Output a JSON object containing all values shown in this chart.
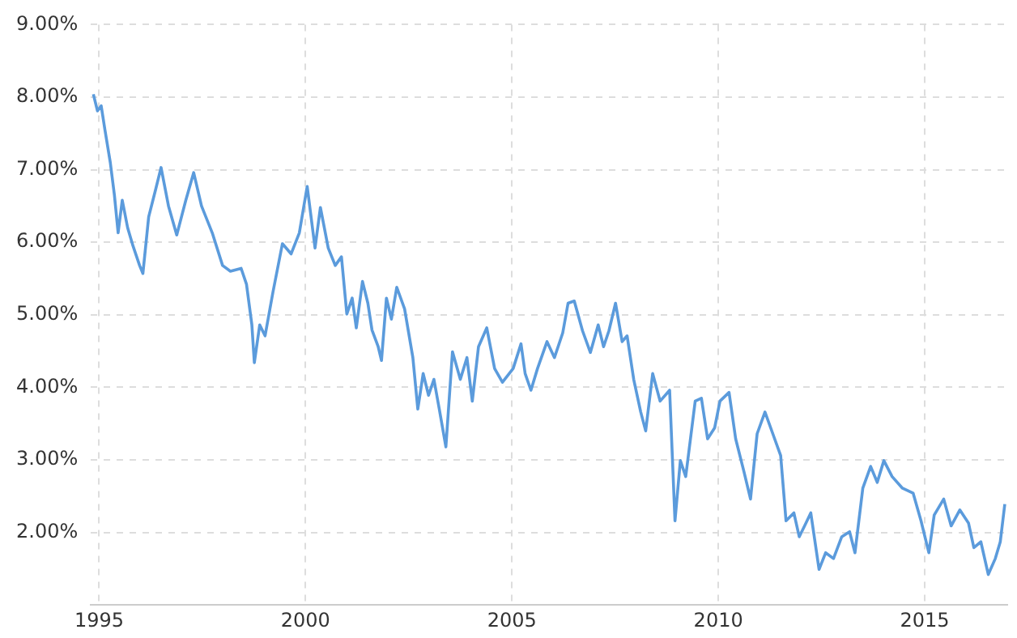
{
  "chart_data": {
    "type": "line",
    "x": [
      1994.86,
      1994.96,
      1995.05,
      1995.14,
      1995.27,
      1995.37,
      1995.46,
      1995.56,
      1995.69,
      1995.82,
      1995.98,
      1996.06,
      1996.2,
      1996.37,
      1996.5,
      1996.68,
      1996.88,
      1997.1,
      1997.29,
      1997.48,
      1997.74,
      1997.99,
      1998.18,
      1998.44,
      1998.57,
      1998.7,
      1998.76,
      1998.89,
      1999.02,
      1999.21,
      1999.44,
      1999.65,
      1999.85,
      2000.04,
      2000.23,
      2000.36,
      2000.55,
      2000.72,
      2000.87,
      2001.0,
      2001.13,
      2001.23,
      2001.38,
      2001.51,
      2001.61,
      2001.76,
      2001.84,
      2001.96,
      2002.08,
      2002.21,
      2002.4,
      2002.6,
      2002.72,
      2002.85,
      2002.98,
      2003.11,
      2003.24,
      2003.4,
      2003.56,
      2003.75,
      2003.91,
      2004.04,
      2004.19,
      2004.39,
      2004.58,
      2004.77,
      2005.03,
      2005.22,
      2005.32,
      2005.46,
      2005.62,
      2005.85,
      2006.03,
      2006.23,
      2006.36,
      2006.51,
      2006.71,
      2006.9,
      2007.09,
      2007.22,
      2007.35,
      2007.51,
      2007.67,
      2007.79,
      2007.95,
      2008.12,
      2008.24,
      2008.41,
      2008.59,
      2008.82,
      2008.95,
      2009.08,
      2009.21,
      2009.44,
      2009.59,
      2009.74,
      2009.91,
      2010.04,
      2010.26,
      2010.42,
      2010.62,
      2010.78,
      2010.94,
      2011.13,
      2011.32,
      2011.51,
      2011.64,
      2011.83,
      2011.96,
      2012.09,
      2012.24,
      2012.44,
      2012.6,
      2012.79,
      2012.99,
      2013.18,
      2013.31,
      2013.5,
      2013.69,
      2013.85,
      2014.01,
      2014.21,
      2014.46,
      2014.72,
      2014.91,
      2015.1,
      2015.23,
      2015.46,
      2015.64,
      2015.85,
      2016.06,
      2016.19,
      2016.36,
      2016.54,
      2016.71,
      2016.83,
      2016.94
    ],
    "series": [
      {
        "color": "#5b9bdc",
        "values": [
          8.04,
          7.81,
          7.88,
          7.55,
          7.1,
          6.65,
          6.13,
          6.58,
          6.2,
          5.95,
          5.68,
          5.57,
          6.35,
          6.73,
          7.03,
          6.5,
          6.1,
          6.58,
          6.96,
          6.5,
          6.13,
          5.68,
          5.6,
          5.64,
          5.42,
          4.86,
          4.34,
          4.86,
          4.71,
          5.31,
          5.98,
          5.84,
          6.13,
          6.77,
          5.92,
          6.48,
          5.92,
          5.68,
          5.8,
          5.01,
          5.23,
          4.82,
          5.46,
          5.16,
          4.79,
          4.56,
          4.37,
          5.23,
          4.94,
          5.38,
          5.08,
          4.41,
          3.7,
          4.19,
          3.89,
          4.11,
          3.7,
          3.18,
          4.49,
          4.11,
          4.41,
          3.81,
          4.56,
          4.82,
          4.26,
          4.07,
          4.26,
          4.6,
          4.19,
          3.96,
          4.26,
          4.63,
          4.41,
          4.75,
          5.16,
          5.19,
          4.78,
          4.48,
          4.86,
          4.56,
          4.78,
          5.16,
          4.63,
          4.71,
          4.11,
          3.66,
          3.4,
          4.19,
          3.81,
          3.96,
          2.16,
          2.99,
          2.77,
          3.81,
          3.85,
          3.29,
          3.44,
          3.81,
          3.93,
          3.29,
          2.84,
          2.46,
          3.36,
          3.66,
          3.36,
          3.06,
          2.16,
          2.27,
          1.94,
          2.09,
          2.27,
          1.49,
          1.72,
          1.64,
          1.94,
          2.01,
          1.72,
          2.61,
          2.91,
          2.69,
          2.99,
          2.77,
          2.61,
          2.54,
          2.16,
          1.72,
          2.24,
          2.46,
          2.09,
          2.31,
          2.13,
          1.79,
          1.87,
          1.42,
          1.64,
          1.87,
          2.39
        ]
      }
    ],
    "xlim": [
      1994.8,
      2017
    ],
    "xticks": [
      1995,
      2000,
      2005,
      2010,
      2015
    ],
    "ylim": [
      1,
      9
    ],
    "yticks": [
      {
        "value": 2,
        "label": "2.00%"
      },
      {
        "value": 3,
        "label": "3.00%"
      },
      {
        "value": 4,
        "label": "4.00%"
      },
      {
        "value": 5,
        "label": "5.00%"
      },
      {
        "value": 6,
        "label": "6.00%"
      },
      {
        "value": 7,
        "label": "7.00%"
      },
      {
        "value": 8,
        "label": "8.00%"
      },
      {
        "value": 9,
        "label": "9.00%"
      }
    ],
    "grid": true,
    "legend": false,
    "marker": "none",
    "line_style": "solid"
  }
}
